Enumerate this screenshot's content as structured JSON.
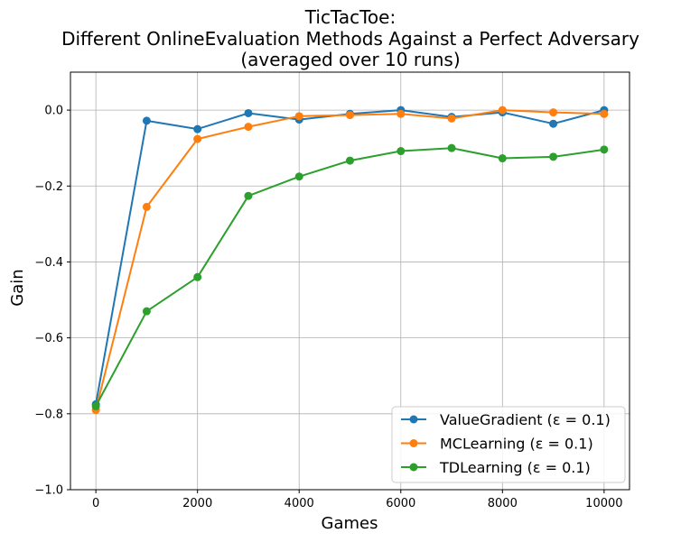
{
  "chart_data": {
    "type": "line",
    "title_lines": [
      "TicTacToe:",
      "Different OnlineEvaluation Methods Against a Perfect Adversary",
      "(averaged over 10 runs)"
    ],
    "xlabel": "Games",
    "ylabel": "Gain",
    "xlim": [
      -500,
      10500
    ],
    "ylim": [
      -1.0,
      0.1
    ],
    "x_ticks": [
      0,
      2000,
      4000,
      6000,
      8000,
      10000
    ],
    "x_tick_labels": [
      "0",
      "2000",
      "4000",
      "6000",
      "8000",
      "10000"
    ],
    "y_ticks": [
      -1.0,
      -0.8,
      -0.6,
      -0.4,
      -0.2,
      0.0
    ],
    "y_tick_labels": [
      "−1.0",
      "−0.8",
      "−0.6",
      "−0.4",
      "−0.2",
      "0.0"
    ],
    "grid": true,
    "legend_position": "bottom-right",
    "x": [
      0,
      1000,
      2000,
      3000,
      4000,
      5000,
      6000,
      7000,
      8000,
      9000,
      10000
    ],
    "series": [
      {
        "name": "ValueGradient (ε = 0.1)",
        "color": "#1f77b4",
        "values": [
          -0.775,
          -0.028,
          -0.05,
          -0.008,
          -0.025,
          -0.01,
          0.0,
          -0.018,
          -0.006,
          -0.036,
          0.0
        ]
      },
      {
        "name": "MCLearning (ε = 0.1)",
        "color": "#ff7f0e",
        "values": [
          -0.79,
          -0.255,
          -0.076,
          -0.044,
          -0.016,
          -0.013,
          -0.01,
          -0.022,
          0.0,
          -0.006,
          -0.01
        ]
      },
      {
        "name": "TDLearning (ε = 0.1)",
        "color": "#2ca02c",
        "values": [
          -0.78,
          -0.53,
          -0.44,
          -0.226,
          -0.175,
          -0.133,
          -0.108,
          -0.1,
          -0.127,
          -0.123,
          -0.104
        ]
      }
    ]
  }
}
